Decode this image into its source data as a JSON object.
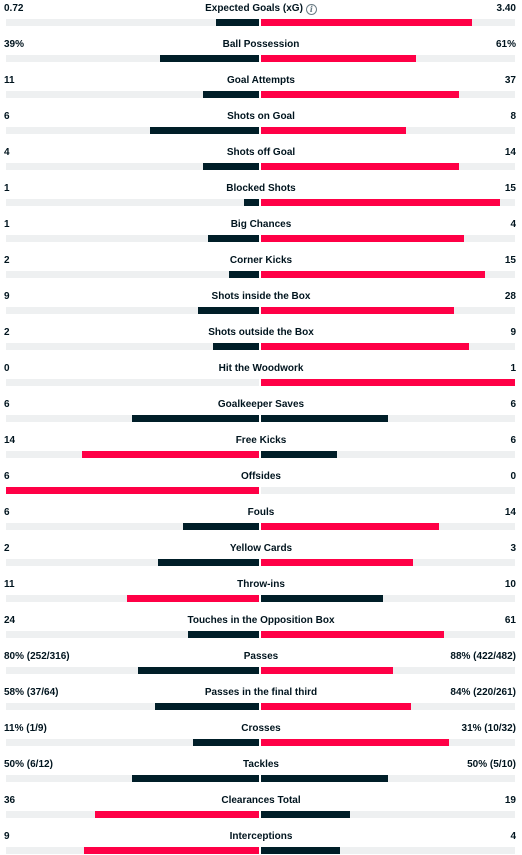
{
  "colors": {
    "leader": "#ff0046",
    "trailer": "#001e28",
    "track": "#eef0f1"
  },
  "stats": [
    {
      "title": "Expected Goals (xG)",
      "home": "0.72",
      "away": "3.40",
      "home_share": 0.17,
      "away_share": 0.83,
      "info_icon": "info-icon"
    },
    {
      "title": "Ball Possession",
      "home": "39%",
      "away": "61%",
      "home_share": 0.39,
      "away_share": 0.61
    },
    {
      "title": "Goal Attempts",
      "home": "11",
      "away": "37",
      "home_share": 0.22,
      "away_share": 0.78
    },
    {
      "title": "Shots on Goal",
      "home": "6",
      "away": "8",
      "home_share": 0.43,
      "away_share": 0.57
    },
    {
      "title": "Shots off Goal",
      "home": "4",
      "away": "14",
      "home_share": 0.22,
      "away_share": 0.78
    },
    {
      "title": "Blocked Shots",
      "home": "1",
      "away": "15",
      "home_share": 0.06,
      "away_share": 0.94
    },
    {
      "title": "Big Chances",
      "home": "1",
      "away": "4",
      "home_share": 0.2,
      "away_share": 0.8
    },
    {
      "title": "Corner Kicks",
      "home": "2",
      "away": "15",
      "home_share": 0.12,
      "away_share": 0.88
    },
    {
      "title": "Shots inside the Box",
      "home": "9",
      "away": "28",
      "home_share": 0.24,
      "away_share": 0.76
    },
    {
      "title": "Shots outside the Box",
      "home": "2",
      "away": "9",
      "home_share": 0.18,
      "away_share": 0.82
    },
    {
      "title": "Hit the Woodwork",
      "home": "0",
      "away": "1",
      "home_share": 0,
      "away_share": 1
    },
    {
      "title": "Goalkeeper Saves",
      "home": "6",
      "away": "6",
      "home_share": 0.5,
      "away_share": 0.5
    },
    {
      "title": "Free Kicks",
      "home": "14",
      "away": "6",
      "home_share": 0.7,
      "away_share": 0.3
    },
    {
      "title": "Offsides",
      "home": "6",
      "away": "0",
      "home_share": 1,
      "away_share": 0
    },
    {
      "title": "Fouls",
      "home": "6",
      "away": "14",
      "home_share": 0.3,
      "away_share": 0.7
    },
    {
      "title": "Yellow Cards",
      "home": "2",
      "away": "3",
      "home_share": 0.4,
      "away_share": 0.6
    },
    {
      "title": "Throw-ins",
      "home": "11",
      "away": "10",
      "home_share": 0.52,
      "away_share": 0.48
    },
    {
      "title": "Touches in the Opposition Box",
      "home": "24",
      "away": "61",
      "home_share": 0.28,
      "away_share": 0.72
    },
    {
      "title": "Passes",
      "home": "80% (252/316)",
      "away": "88% (422/482)",
      "home_share": 0.48,
      "away_share": 0.52
    },
    {
      "title": "Passes in the final third",
      "home": "58% (37/64)",
      "away": "84% (220/261)",
      "home_share": 0.41,
      "away_share": 0.59
    },
    {
      "title": "Crosses",
      "home": "11% (1/9)",
      "away": "31% (10/32)",
      "home_share": 0.26,
      "away_share": 0.74
    },
    {
      "title": "Tackles",
      "home": "50% (6/12)",
      "away": "50% (5/10)",
      "home_share": 0.5,
      "away_share": 0.5
    },
    {
      "title": "Clearances Total",
      "home": "36",
      "away": "19",
      "home_share": 0.65,
      "away_share": 0.35
    },
    {
      "title": "Interceptions",
      "home": "9",
      "away": "4",
      "home_share": 0.69,
      "away_share": 0.31
    }
  ]
}
